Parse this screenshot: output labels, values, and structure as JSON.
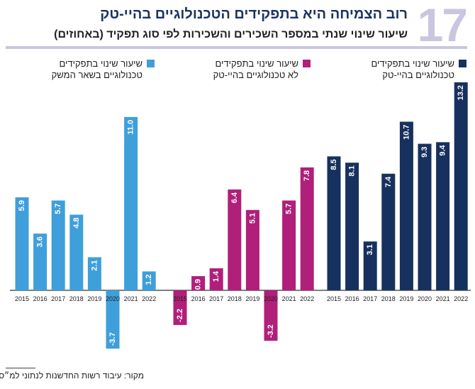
{
  "header": {
    "number": "17",
    "title": "רוב הצמיחה היא בתפקידים הטכנולוגיים בהיי-טק",
    "subtitle": "שיעור שינוי שנתי במספר השכירים והשכירות לפי סוג תפקיד (באחוזים)"
  },
  "source": "מקור: עיבוד רשות החדשנות לנתוני למ״ס",
  "chart_data": {
    "type": "bar",
    "title": "רוב הצמיחה היא בתפקידים הטכנולוגיים בהיי-טק",
    "ylabel": "",
    "categories": [
      "2015",
      "2016",
      "2017",
      "2018",
      "2019",
      "2020",
      "2021",
      "2022"
    ],
    "legend_placement": "top",
    "grid": false,
    "series": [
      {
        "name": "שיעור שינוי בתפקידים טכנולוגיים בשאר המשק",
        "line1": "שיעור שינוי בתפקידים",
        "line2": "טכנולוגיים בשאר המשק",
        "color": "#3f9fdb",
        "values": [
          5.9,
          3.6,
          5.7,
          4.8,
          2.1,
          -3.7,
          11.0,
          1.2
        ]
      },
      {
        "name": "שיעור שינוי בתפקידים לא טכנולוגיים בהיי-טק",
        "line1": "שיעור שינוי בתפקידים",
        "line2": "לא טכנולוגיים בהיי-טק",
        "color": "#b01f7a",
        "values": [
          -2.2,
          0.9,
          1.4,
          6.4,
          5.1,
          -3.2,
          5.7,
          7.8
        ]
      },
      {
        "name": "שיעור שינוי בתפקידים טכנולוגיים בהיי-טק",
        "line1": "שיעור שינוי בתפקידים",
        "line2": "טכנולוגיים בהיי-טק",
        "color": "#17315e",
        "values": [
          8.5,
          8.1,
          3.1,
          7.4,
          10.7,
          9.3,
          9.4,
          13.2
        ]
      }
    ]
  }
}
